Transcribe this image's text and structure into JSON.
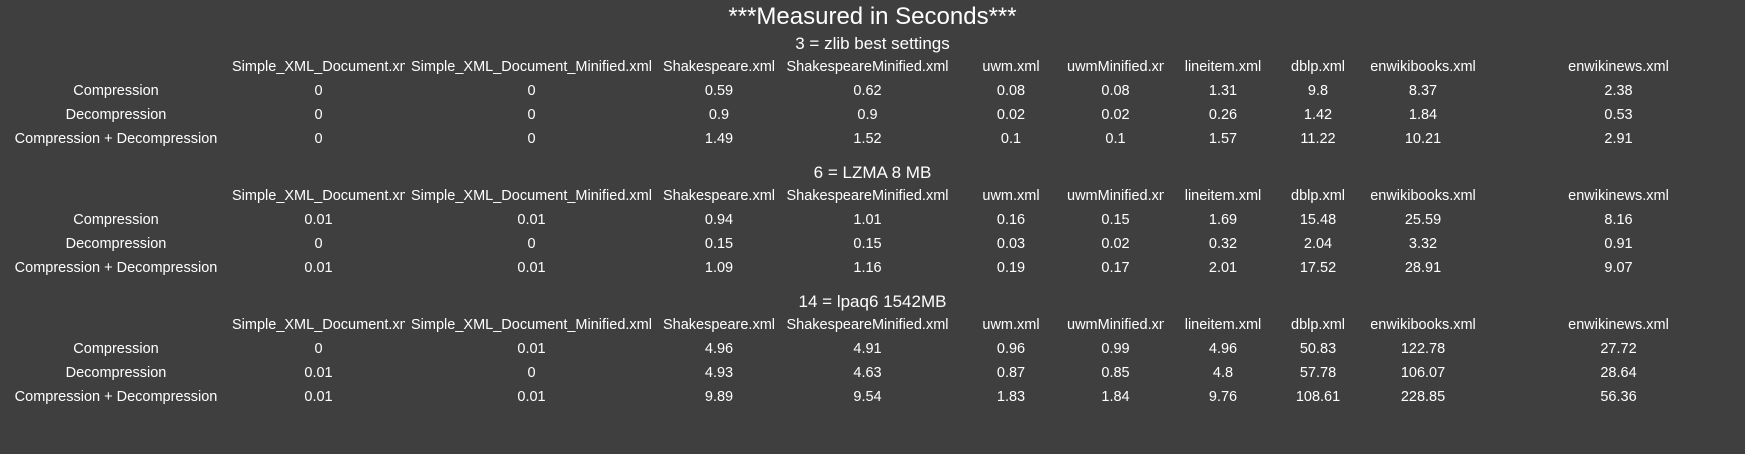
{
  "page_title": "***Measured in Seconds***",
  "columns": [
    "Simple_XML_Document.xml",
    "Simple_XML_Document_Minified.xml",
    "Shakespeare.xml",
    "ShakespeareMinified.xml",
    "uwm.xml",
    "uwmMinified.xml",
    "lineitem.xml",
    "dblp.xml",
    "enwikibooks.xml",
    "enwikinews.xml"
  ],
  "sections": [
    {
      "title": "3 = zlib best settings",
      "rows": [
        {
          "label": "Compression",
          "values": [
            "0",
            "0",
            "0.59",
            "0.62",
            "0.08",
            "0.08",
            "1.31",
            "9.8",
            "8.37",
            "2.38"
          ]
        },
        {
          "label": "Decompression",
          "values": [
            "0",
            "0",
            "0.9",
            "0.9",
            "0.02",
            "0.02",
            "0.26",
            "1.42",
            "1.84",
            "0.53"
          ]
        },
        {
          "label": "Compression + Decompression",
          "values": [
            "0",
            "0",
            "1.49",
            "1.52",
            "0.1",
            "0.1",
            "1.57",
            "11.22",
            "10.21",
            "2.91"
          ]
        }
      ]
    },
    {
      "title": "6 = LZMA 8 MB",
      "rows": [
        {
          "label": "Compression",
          "values": [
            "0.01",
            "0.01",
            "0.94",
            "1.01",
            "0.16",
            "0.15",
            "1.69",
            "15.48",
            "25.59",
            "8.16"
          ]
        },
        {
          "label": "Decompression",
          "values": [
            "0",
            "0",
            "0.15",
            "0.15",
            "0.03",
            "0.02",
            "0.32",
            "2.04",
            "3.32",
            "0.91"
          ]
        },
        {
          "label": "Compression + Decompression",
          "values": [
            "0.01",
            "0.01",
            "1.09",
            "1.16",
            "0.19",
            "0.17",
            "2.01",
            "17.52",
            "28.91",
            "9.07"
          ]
        }
      ]
    },
    {
      "title": "14 = lpaq6 1542MB",
      "rows": [
        {
          "label": "Compression",
          "values": [
            "0",
            "0.01",
            "4.96",
            "4.91",
            "0.96",
            "0.99",
            "4.96",
            "50.83",
            "122.78",
            "27.72"
          ]
        },
        {
          "label": "Decompression",
          "values": [
            "0.01",
            "0",
            "4.93",
            "4.63",
            "0.87",
            "0.85",
            "4.8",
            "57.78",
            "106.07",
            "28.64"
          ]
        },
        {
          "label": "Compression + Decompression",
          "values": [
            "0.01",
            "0.01",
            "9.89",
            "9.54",
            "1.83",
            "1.84",
            "9.76",
            "108.61",
            "228.85",
            "56.36"
          ]
        }
      ]
    }
  ]
}
